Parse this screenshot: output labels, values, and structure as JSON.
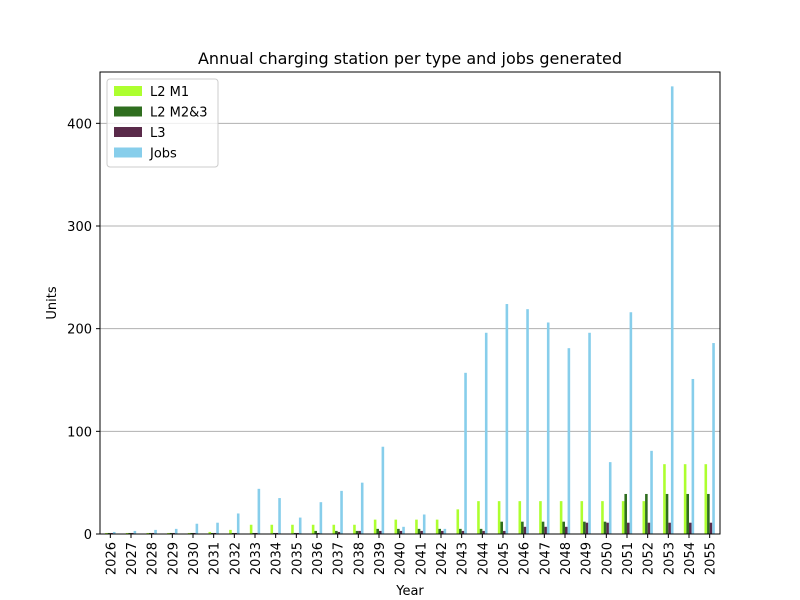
{
  "chart_data": {
    "type": "bar",
    "title": "Annual charging station per type and jobs generated",
    "xlabel": "Year",
    "ylabel": "Units",
    "ylim": [
      0,
      450
    ],
    "yticks": [
      0,
      100,
      200,
      300,
      400
    ],
    "grid": "horizontal",
    "legend_position": "top-left",
    "categories": [
      "2026",
      "2027",
      "2028",
      "2029",
      "2030",
      "2031",
      "2032",
      "2033",
      "2034",
      "2035",
      "2036",
      "2037",
      "2038",
      "2039",
      "2040",
      "2041",
      "2042",
      "2043",
      "2044",
      "2045",
      "2046",
      "2047",
      "2048",
      "2049",
      "2050",
      "2051",
      "2052",
      "2053",
      "2054",
      "2055"
    ],
    "series": [
      {
        "name": "L2 M1",
        "color": "#adff2f",
        "values": [
          1,
          1,
          1,
          1,
          1,
          2,
          4,
          9,
          9,
          9,
          9,
          9,
          9,
          14,
          14,
          14,
          14,
          24,
          32,
          32,
          32,
          32,
          32,
          32,
          32,
          32,
          32,
          68,
          68,
          68
        ]
      },
      {
        "name": "L2 M2&3",
        "color": "#2f6e1f",
        "values": [
          1,
          1,
          1,
          1,
          1,
          1,
          1,
          1,
          1,
          1,
          3,
          3,
          3,
          5,
          5,
          5,
          5,
          5,
          5,
          12,
          12,
          12,
          12,
          12,
          12,
          39,
          39,
          39,
          39,
          39
        ]
      },
      {
        "name": "L3",
        "color": "#5a2a4a",
        "values": [
          1,
          1,
          1,
          1,
          1,
          1,
          1,
          1,
          1,
          1,
          1,
          2,
          3,
          3,
          3,
          3,
          3,
          3,
          3,
          3,
          7,
          7,
          7,
          11,
          11,
          11,
          11,
          11,
          11,
          11
        ]
      },
      {
        "name": "Jobs",
        "color": "#87ceeb",
        "values": [
          2,
          3,
          4,
          5,
          10,
          11,
          20,
          44,
          35,
          16,
          31,
          42,
          50,
          85,
          7,
          19,
          5,
          157,
          196,
          224,
          219,
          206,
          181,
          196,
          70,
          216,
          81,
          436,
          151,
          186
        ]
      }
    ]
  }
}
